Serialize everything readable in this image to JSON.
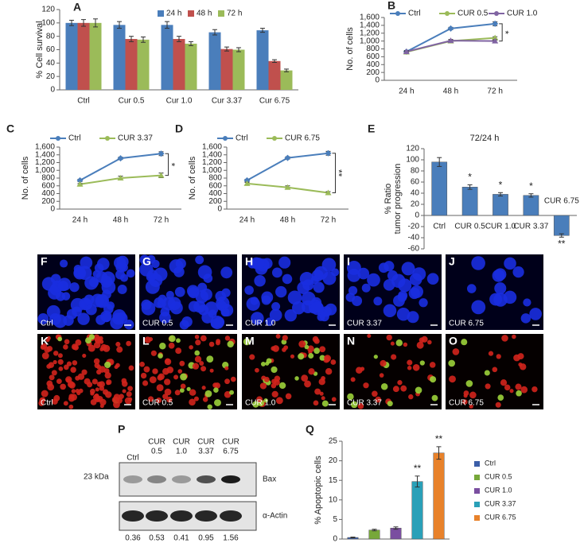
{
  "chart_data": [
    {
      "panel": "A",
      "type": "bar",
      "ylabel": "% Cell survival",
      "legend": "top",
      "categories": [
        "Ctrl",
        "Cur 0.5",
        "Cur 1.0",
        "Cur 3.37",
        "Cur 6.75"
      ],
      "series": [
        {
          "name": "24 h",
          "color": "#4a7ebb",
          "values": [
            100,
            97,
            97,
            86,
            89
          ],
          "errors": [
            4,
            5,
            5,
            4,
            3
          ]
        },
        {
          "name": "48 h",
          "color": "#c0504d",
          "values": [
            100,
            76,
            76,
            61,
            43
          ],
          "errors": [
            5,
            4,
            4,
            3,
            2
          ]
        },
        {
          "name": "72 h",
          "color": "#9bbb59",
          "values": [
            100,
            75,
            69,
            60,
            29
          ],
          "errors": [
            6,
            4,
            3,
            3,
            2
          ]
        }
      ],
      "ylim": [
        0,
        120
      ],
      "yticks": [
        0,
        20,
        40,
        60,
        80,
        100,
        120
      ]
    },
    {
      "panel": "B",
      "type": "line",
      "ylabel": "No. of cells",
      "legend": "top",
      "annotation": "*",
      "categories": [
        "24 h",
        "48 h",
        "72 h"
      ],
      "series": [
        {
          "name": "Ctrl",
          "color": "#4a7ebb",
          "values": [
            730,
            1320,
            1440
          ],
          "errors": [
            30,
            30,
            50
          ]
        },
        {
          "name": "CUR 0.5",
          "color": "#9bbb59",
          "values": [
            720,
            1000,
            1080
          ],
          "errors": [
            20,
            30,
            30
          ]
        },
        {
          "name": "CUR 1.0",
          "color": "#8064a2",
          "values": [
            730,
            1010,
            1000
          ],
          "errors": [
            20,
            30,
            30
          ]
        }
      ],
      "ylim": [
        0,
        1600
      ],
      "yticks": [
        0,
        200,
        400,
        600,
        800,
        {
          "value": 1000,
          "label": "1,000"
        },
        {
          "value": 1200,
          "label": "1,200"
        },
        {
          "value": 1400,
          "label": "1,400"
        },
        {
          "value": 1600,
          "label": "1,600"
        }
      ]
    },
    {
      "panel": "C",
      "type": "line",
      "ylabel": "No. of cells",
      "legend": "top",
      "annotation": "*",
      "categories": [
        "24 h",
        "48 h",
        "72 h"
      ],
      "series": [
        {
          "name": "Ctrl",
          "color": "#4a7ebb",
          "values": [
            740,
            1310,
            1430
          ],
          "errors": [
            30,
            30,
            50
          ]
        },
        {
          "name": "CUR 3.37",
          "color": "#9bbb59",
          "values": [
            640,
            800,
            870
          ],
          "errors": [
            20,
            50,
            60
          ]
        }
      ],
      "ylim": [
        0,
        1600
      ],
      "yticks": [
        0,
        200,
        400,
        600,
        800,
        {
          "value": 1000,
          "label": "1,000"
        },
        {
          "value": 1200,
          "label": "1,200"
        },
        {
          "value": 1400,
          "label": "1,400"
        },
        {
          "value": 1600,
          "label": "1,600"
        }
      ]
    },
    {
      "panel": "D",
      "type": "line",
      "ylabel": "No. of cells",
      "legend": "top",
      "annotation": "**",
      "categories": [
        "24 h",
        "48 h",
        "72 h"
      ],
      "series": [
        {
          "name": "Ctrl",
          "color": "#4a7ebb",
          "values": [
            740,
            1320,
            1440
          ],
          "errors": [
            30,
            30,
            50
          ]
        },
        {
          "name": "CUR 6.75",
          "color": "#9bbb59",
          "values": [
            660,
            560,
            420
          ],
          "errors": [
            30,
            40,
            30
          ]
        }
      ],
      "ylim": [
        0,
        1600
      ],
      "yticks": [
        0,
        200,
        400,
        600,
        800,
        {
          "value": 1000,
          "label": "1,000"
        },
        {
          "value": 1200,
          "label": "1,200"
        },
        {
          "value": 1400,
          "label": "1,400"
        },
        {
          "value": 1600,
          "label": "1,600"
        }
      ]
    },
    {
      "panel": "E",
      "type": "bar",
      "title": "72/24 h",
      "ylabel": [
        "% Ratio",
        "tumor progression"
      ],
      "categories": [
        "Ctrl",
        "CUR 0.5",
        "CUR 1.0",
        "CUR 3.37",
        "CUR 6.75"
      ],
      "values": [
        96,
        51,
        38,
        36,
        -36
      ],
      "errors": [
        8,
        4,
        3,
        3,
        3
      ],
      "color": "#4a7ebb",
      "annotations": [
        null,
        "*",
        "*",
        "*",
        "**"
      ],
      "ylim": [
        -60,
        120
      ],
      "yticks": [
        -60,
        -40,
        -20,
        0,
        20,
        40,
        60,
        80,
        100,
        120
      ]
    },
    {
      "panel": "Q",
      "type": "bar",
      "ylabel": "% Apoptopic cells",
      "legend": "right",
      "categories": [
        "Ctrl",
        "CUR 0.5",
        "CUR 1.0",
        "CUR 3.37",
        "CUR 6.75"
      ],
      "values": [
        0.4,
        2.3,
        2.8,
        14.7,
        22
      ],
      "errors": [
        0.1,
        0.2,
        0.3,
        1.4,
        1.6
      ],
      "colors": [
        "#3b5ea8",
        "#77a83a",
        "#7a4ea0",
        "#2aa0b8",
        "#e8822b"
      ],
      "annotations": [
        null,
        null,
        null,
        "**",
        "**"
      ],
      "ylim": [
        0,
        25
      ],
      "yticks": [
        0,
        5,
        10,
        15,
        20,
        25
      ]
    }
  ],
  "micrographs": [
    {
      "panel": "F",
      "caption": "Ctrl"
    },
    {
      "panel": "G",
      "caption": "CUR 0.5"
    },
    {
      "panel": "H",
      "caption": "CUR 1.0"
    },
    {
      "panel": "I",
      "caption": "CUR 3.37"
    },
    {
      "panel": "J",
      "caption": "CUR 6.75"
    },
    {
      "panel": "K",
      "caption": "Ctrl"
    },
    {
      "panel": "L",
      "caption": "CUR 0.5"
    },
    {
      "panel": "M",
      "caption": "CUR 1.0"
    },
    {
      "panel": "N",
      "caption": "CUR 3.37"
    },
    {
      "panel": "O",
      "caption": "CUR 6.75"
    }
  ],
  "blot": {
    "panel": "P",
    "lanes": [
      [
        "Ctrl"
      ],
      [
        "CUR",
        "0.5"
      ],
      [
        "CUR",
        "1.0"
      ],
      [
        "CUR",
        "3.37"
      ],
      [
        "CUR",
        "6.75"
      ]
    ],
    "marker": "23 kDa",
    "rows": [
      "Bax",
      "α-Actin"
    ],
    "ratios": [
      "0.36",
      "0.53",
      "0.41",
      "0.95",
      "1.56"
    ]
  }
}
